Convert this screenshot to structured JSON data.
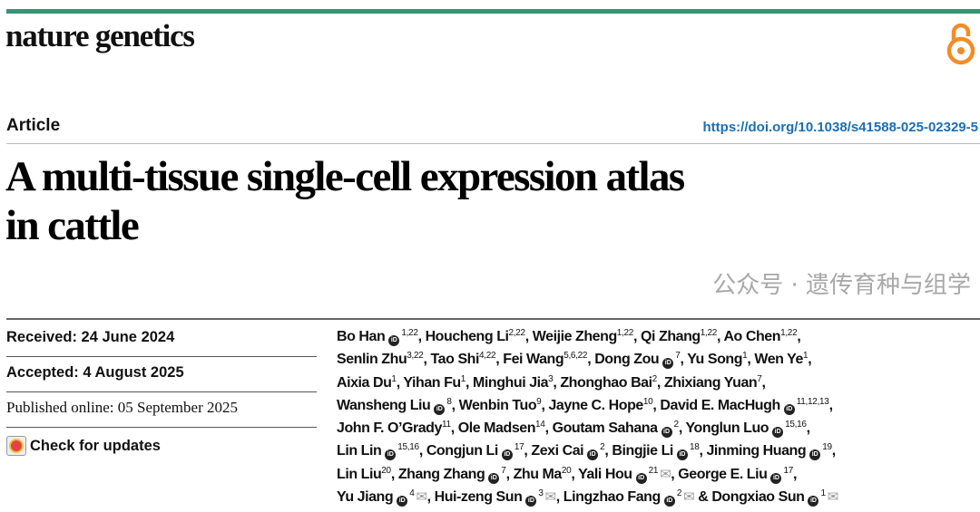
{
  "journal": "nature genetics",
  "open_access_icon": "open-lock-icon",
  "accent_color": "#3a9474",
  "oa_color": "#f28c28",
  "article_type": "Article",
  "doi": "https://doi.org/10.1038/s41588-025-02329-5",
  "title_lines": [
    "A multi-tissue single-cell expression atlas",
    "in cattle"
  ],
  "dates": {
    "received": "Received: 24 June 2024",
    "accepted": "Accepted: 4 August 2025",
    "published": "Published online: 05 September 2025",
    "check_updates": "Check for updates"
  },
  "authors": [
    {
      "name": "Bo Han",
      "orcid": true,
      "sup": "1,22"
    },
    {
      "name": "Houcheng Li",
      "sup": "2,22"
    },
    {
      "name": "Weijie Zheng",
      "sup": "1,22"
    },
    {
      "name": "Qi Zhang",
      "sup": "1,22"
    },
    {
      "name": "Ao Chen",
      "sup": "1,22"
    },
    {
      "name": "Senlin Zhu",
      "sup": "3,22"
    },
    {
      "name": "Tao Shi",
      "sup": "4,22"
    },
    {
      "name": "Fei Wang",
      "sup": "5,6,22"
    },
    {
      "name": "Dong Zou",
      "orcid": true,
      "sup": "7"
    },
    {
      "name": "Yu Song",
      "sup": "1"
    },
    {
      "name": "Wen Ye",
      "sup": "1"
    },
    {
      "name": "Aixia Du",
      "sup": "1"
    },
    {
      "name": "Yihan Fu",
      "sup": "1"
    },
    {
      "name": "Minghui Jia",
      "sup": "3"
    },
    {
      "name": "Zhonghao Bai",
      "sup": "2"
    },
    {
      "name": "Zhixiang Yuan",
      "sup": "7"
    },
    {
      "name": "Wansheng Liu",
      "orcid": true,
      "sup": "8"
    },
    {
      "name": "Wenbin Tuo",
      "sup": "9"
    },
    {
      "name": "Jayne C. Hope",
      "sup": "10"
    },
    {
      "name": "David E. MacHugh",
      "orcid": true,
      "sup": "11,12,13"
    },
    {
      "name": "John F. O’Grady",
      "sup": "11"
    },
    {
      "name": "Ole Madsen",
      "sup": "14"
    },
    {
      "name": "Goutam Sahana",
      "orcid": true,
      "sup": "2"
    },
    {
      "name": "Yonglun Luo",
      "orcid": true,
      "sup": "15,16"
    },
    {
      "name": "Lin Lin",
      "orcid": true,
      "sup": "15,16"
    },
    {
      "name": "Congjun Li",
      "orcid": true,
      "sup": "17"
    },
    {
      "name": "Zexi Cai",
      "orcid": true,
      "sup": "2"
    },
    {
      "name": "Bingjie Li",
      "orcid": true,
      "sup": "18"
    },
    {
      "name": "Jinming Huang",
      "orcid": true,
      "sup": "19"
    },
    {
      "name": "Lin Liu",
      "sup": "20"
    },
    {
      "name": "Zhang Zhang",
      "orcid": true,
      "sup": "7"
    },
    {
      "name": "Zhu Ma",
      "sup": "20"
    },
    {
      "name": "Yali Hou",
      "orcid": true,
      "sup": "21",
      "email": true
    },
    {
      "name": "George E. Liu",
      "orcid": true,
      "sup": "17"
    },
    {
      "name": "Yu Jiang",
      "orcid": true,
      "sup": "4",
      "email": true
    },
    {
      "name": "Hui-zeng Sun",
      "orcid": true,
      "sup": "3",
      "email": true
    },
    {
      "name": "Lingzhao Fang",
      "orcid": true,
      "sup": "2",
      "email": true
    },
    {
      "name": "Dongxiao Sun",
      "orcid": true,
      "sup": "1",
      "email": true
    }
  ],
  "orcid_label": "iD",
  "email_icon": "envelope-icon",
  "watermark": "公众号 · 遗传育种与组学"
}
